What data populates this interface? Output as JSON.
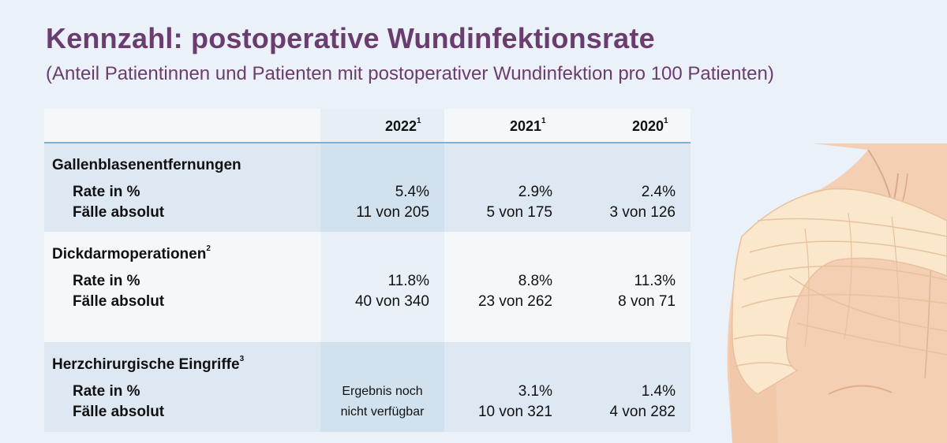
{
  "header": {
    "title": "Kennzahl: postoperative Wundinfektionsrate",
    "subtitle": "(Anteil Patientinnen und Patienten mit postoperativer Wundinfektion pro 100 Patienten)"
  },
  "table": {
    "years": [
      {
        "label": "2022",
        "sup": "1"
      },
      {
        "label": "2021",
        "sup": "1"
      },
      {
        "label": "2020",
        "sup": "1"
      }
    ],
    "row_labels": {
      "rate": "Rate in %",
      "cases": "Fälle absolut"
    },
    "sections": [
      {
        "title": "Gallenblasenentfernungen",
        "sup": "",
        "rate": [
          "5.4%",
          "2.9%",
          "2.4%"
        ],
        "cases": [
          "11 von 205",
          "5 von 175",
          "3 von 126"
        ]
      },
      {
        "title": "Dickdarmoperationen",
        "sup": "2",
        "rate": [
          "11.8%",
          "8.8%",
          "11.3%"
        ],
        "cases": [
          "40 von 340",
          "23 von 262",
          "8 von 71"
        ]
      },
      {
        "title": "Herzchirurgische Eingriffe",
        "sup": "3",
        "rate": [
          "",
          "3.1%",
          "1.4%"
        ],
        "cases": [
          "",
          "10 von 321",
          "4 von 282"
        ],
        "note_2022": [
          "Ergebnis noch",
          "nicht verfügbar"
        ]
      }
    ]
  },
  "illustration": {
    "icon": "bandaged-shoulder-icon",
    "skin_color": "#f5cfb3",
    "bandage_color": "#fbe7cc"
  }
}
